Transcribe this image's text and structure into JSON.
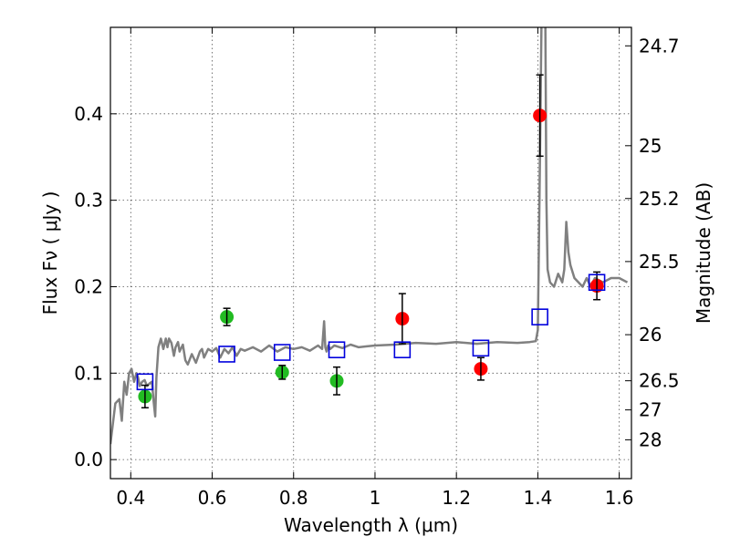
{
  "chart_data": {
    "type": "scatter",
    "xlabel": "Wavelength  λ (μm)",
    "ylabel": "Flux  Fν  ( μJy )",
    "y2label": "Magnitude (AB)",
    "xlim": [
      0.35,
      1.63
    ],
    "ylim": [
      -0.022,
      0.5
    ],
    "x_ticks": [
      0.4,
      0.6,
      0.8,
      1.0,
      1.2,
      1.4,
      1.6
    ],
    "x_tick_labels": [
      "0.4",
      "0.6",
      "0.8",
      "1",
      "1.2",
      "1.4",
      "1.6"
    ],
    "y_ticks": [
      0.0,
      0.1,
      0.2,
      0.3,
      0.4
    ],
    "y_tick_labels": [
      "0.0",
      "0.1",
      "0.2",
      "0.3",
      "0.4"
    ],
    "mag_ticks": [
      {
        "flux": 0.4786,
        "label": "24.7"
      },
      {
        "flux": 0.3631,
        "label": "25"
      },
      {
        "flux": 0.302,
        "label": "25.2"
      },
      {
        "flux": 0.2291,
        "label": "25.5"
      },
      {
        "flux": 0.1445,
        "label": "26"
      },
      {
        "flux": 0.0912,
        "label": "26.5"
      },
      {
        "flux": 0.0575,
        "label": "27"
      },
      {
        "flux": 0.0229,
        "label": "28"
      }
    ],
    "grid": true,
    "colors": {
      "model": "#808080",
      "green": "#22bb22",
      "red": "#ff0000",
      "box": "#0000dd",
      "errorbar": "#000000",
      "grid": "#555555"
    },
    "series": [
      {
        "name": "model spectrum",
        "kind": "line",
        "x": [
          0.35,
          0.362,
          0.372,
          0.378,
          0.384,
          0.39,
          0.396,
          0.402,
          0.408,
          0.414,
          0.418,
          0.422,
          0.428,
          0.434,
          0.44,
          0.446,
          0.452,
          0.456,
          0.46,
          0.463,
          0.468,
          0.474,
          0.48,
          0.486,
          0.49,
          0.494,
          0.5,
          0.506,
          0.51,
          0.516,
          0.52,
          0.528,
          0.534,
          0.54,
          0.55,
          0.56,
          0.57,
          0.575,
          0.58,
          0.59,
          0.6,
          0.61,
          0.62,
          0.63,
          0.64,
          0.65,
          0.66,
          0.67,
          0.68,
          0.7,
          0.72,
          0.74,
          0.76,
          0.78,
          0.8,
          0.82,
          0.84,
          0.86,
          0.87,
          0.875,
          0.878,
          0.881,
          0.885,
          0.89,
          0.9,
          0.92,
          0.94,
          0.96,
          0.98,
          1.0,
          1.05,
          1.1,
          1.15,
          1.2,
          1.25,
          1.3,
          1.35,
          1.38,
          1.395,
          1.4,
          1.404,
          1.41,
          1.412,
          1.415,
          1.418,
          1.421,
          1.424,
          1.43,
          1.44,
          1.45,
          1.46,
          1.465,
          1.47,
          1.475,
          1.48,
          1.49,
          1.5,
          1.51,
          1.52,
          1.53,
          1.54,
          1.56,
          1.58,
          1.6,
          1.62
        ],
        "y": [
          0.018,
          0.065,
          0.07,
          0.045,
          0.09,
          0.075,
          0.1,
          0.105,
          0.09,
          0.1,
          0.095,
          0.085,
          0.09,
          0.092,
          0.085,
          0.088,
          0.09,
          0.068,
          0.05,
          0.095,
          0.13,
          0.14,
          0.128,
          0.14,
          0.13,
          0.14,
          0.135,
          0.12,
          0.13,
          0.136,
          0.125,
          0.133,
          0.115,
          0.11,
          0.122,
          0.112,
          0.125,
          0.128,
          0.118,
          0.128,
          0.125,
          0.129,
          0.118,
          0.128,
          0.123,
          0.13,
          0.12,
          0.128,
          0.126,
          0.13,
          0.125,
          0.132,
          0.125,
          0.13,
          0.128,
          0.13,
          0.126,
          0.132,
          0.128,
          0.16,
          0.13,
          0.125,
          0.132,
          0.128,
          0.132,
          0.129,
          0.133,
          0.13,
          0.131,
          0.132,
          0.133,
          0.135,
          0.134,
          0.136,
          0.134,
          0.136,
          0.135,
          0.136,
          0.137,
          0.15,
          0.3,
          0.55,
          0.55,
          0.55,
          0.55,
          0.3,
          0.22,
          0.205,
          0.2,
          0.215,
          0.205,
          0.22,
          0.275,
          0.24,
          0.225,
          0.21,
          0.205,
          0.2,
          0.21,
          0.2,
          0.21,
          0.205,
          0.21,
          0.21,
          0.205
        ]
      },
      {
        "name": "green points",
        "kind": "points",
        "x": [
          0.435,
          0.636,
          0.772,
          0.906
        ],
        "y": [
          0.073,
          0.165,
          0.101,
          0.091
        ],
        "yerr": [
          0.013,
          0.01,
          0.008,
          0.016
        ]
      },
      {
        "name": "red points",
        "kind": "points",
        "x": [
          1.067,
          1.26,
          1.405,
          1.545
        ],
        "y": [
          0.163,
          0.105,
          0.398,
          0.201
        ],
        "yerr": [
          0.029,
          0.013,
          0.047,
          0.016
        ]
      },
      {
        "name": "model boxes",
        "kind": "boxes",
        "x": [
          0.435,
          0.636,
          0.772,
          0.906,
          1.067,
          1.26,
          1.405,
          1.545
        ],
        "y": [
          0.09,
          0.122,
          0.124,
          0.127,
          0.127,
          0.129,
          0.165,
          0.205
        ]
      }
    ]
  }
}
